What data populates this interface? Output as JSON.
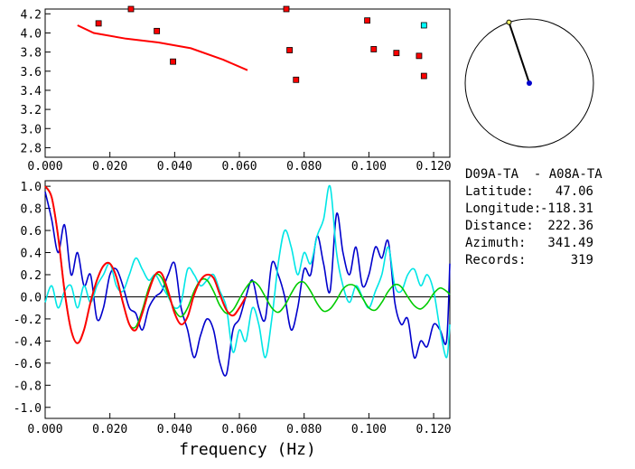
{
  "chart_data": [
    {
      "type": "scatter",
      "title": "",
      "xlabel": "",
      "ylabel": "",
      "xlim": [
        0.0,
        0.125
      ],
      "ylim": [
        2.7,
        4.25
      ],
      "xticks": [
        "0.000",
        "0.020",
        "0.040",
        "0.060",
        "0.080",
        "0.100",
        "0.120"
      ],
      "yticks": [
        "2.8",
        "3.0",
        "3.2",
        "3.4",
        "3.6",
        "3.8",
        "4.0",
        "4.2"
      ],
      "series": [
        {
          "name": "measurements",
          "color": "#ff0000",
          "points": [
            [
              0.0165,
              4.1
            ],
            [
              0.0265,
              4.25
            ],
            [
              0.0345,
              4.02
            ],
            [
              0.0395,
              3.7
            ],
            [
              0.0745,
              4.25
            ],
            [
              0.0755,
              3.82
            ],
            [
              0.0775,
              3.51
            ],
            [
              0.0995,
              4.13
            ],
            [
              0.1015,
              3.83
            ],
            [
              0.1085,
              3.79
            ],
            [
              0.1155,
              3.76
            ],
            [
              0.117,
              3.55
            ]
          ]
        },
        {
          "name": "highlighted",
          "color": "#00ffff",
          "points": [
            [
              0.117,
              4.08
            ]
          ]
        },
        {
          "name": "fit",
          "color": "#ff0000",
          "line": [
            [
              0.01,
              4.08
            ],
            [
              0.015,
              4.0
            ],
            [
              0.025,
              3.94
            ],
            [
              0.035,
              3.9
            ],
            [
              0.045,
              3.84
            ],
            [
              0.055,
              3.72
            ],
            [
              0.0625,
              3.61
            ]
          ]
        }
      ]
    },
    {
      "type": "line",
      "title": "",
      "xlabel": "frequency (Hz)",
      "ylabel": "",
      "xlim": [
        0.0,
        0.125
      ],
      "ylim": [
        -1.1,
        1.05
      ],
      "xticks": [
        "0.000",
        "0.020",
        "0.040",
        "0.060",
        "0.080",
        "0.100",
        "0.120"
      ],
      "yticks": [
        "1.0",
        "0.8",
        "0.6",
        "0.4",
        "0.2",
        "0.0",
        "-0.2",
        "-0.4",
        "-0.6",
        "-0.8",
        "-1.0"
      ],
      "series": [
        {
          "name": "blue",
          "color": "#0000cc",
          "x": [
            0.0,
            0.002,
            0.004,
            0.006,
            0.008,
            0.01,
            0.012,
            0.014,
            0.016,
            0.018,
            0.02,
            0.022,
            0.024,
            0.026,
            0.028,
            0.03,
            0.032,
            0.034,
            0.036,
            0.038,
            0.04,
            0.042,
            0.044,
            0.046,
            0.048,
            0.05,
            0.052,
            0.054,
            0.056,
            0.058,
            0.06,
            0.062,
            0.064,
            0.066,
            0.068,
            0.07,
            0.072,
            0.074,
            0.076,
            0.078,
            0.08,
            0.082,
            0.084,
            0.086,
            0.088,
            0.09,
            0.092,
            0.094,
            0.096,
            0.098,
            0.1,
            0.102,
            0.104,
            0.106,
            0.108,
            0.11,
            0.112,
            0.114,
            0.116,
            0.118,
            0.12,
            0.122,
            0.124,
            0.125
          ],
          "values": [
            0.95,
            0.7,
            0.4,
            0.65,
            0.2,
            0.4,
            0.1,
            0.2,
            -0.2,
            -0.1,
            0.2,
            0.25,
            0.1,
            -0.1,
            -0.15,
            -0.3,
            -0.1,
            0.0,
            0.05,
            0.2,
            0.3,
            -0.1,
            -0.3,
            -0.55,
            -0.35,
            -0.2,
            -0.3,
            -0.6,
            -0.7,
            -0.3,
            -0.2,
            0.0,
            0.15,
            -0.1,
            -0.2,
            0.3,
            0.2,
            0.0,
            -0.3,
            -0.1,
            0.25,
            0.2,
            0.55,
            0.3,
            0.05,
            0.75,
            0.4,
            0.2,
            0.45,
            0.1,
            0.2,
            0.45,
            0.35,
            0.5,
            -0.05,
            -0.25,
            -0.2,
            -0.55,
            -0.4,
            -0.45,
            -0.25,
            -0.3,
            -0.4,
            0.3
          ]
        },
        {
          "name": "cyan",
          "color": "#00e6e6",
          "x": [
            0.0,
            0.002,
            0.004,
            0.006,
            0.008,
            0.01,
            0.012,
            0.014,
            0.016,
            0.018,
            0.02,
            0.022,
            0.024,
            0.026,
            0.028,
            0.03,
            0.032,
            0.034,
            0.036,
            0.038,
            0.04,
            0.042,
            0.044,
            0.046,
            0.048,
            0.05,
            0.052,
            0.054,
            0.056,
            0.058,
            0.06,
            0.062,
            0.064,
            0.066,
            0.068,
            0.07,
            0.072,
            0.074,
            0.076,
            0.078,
            0.08,
            0.082,
            0.084,
            0.086,
            0.088,
            0.09,
            0.092,
            0.094,
            0.096,
            0.098,
            0.1,
            0.102,
            0.104,
            0.106,
            0.108,
            0.11,
            0.112,
            0.114,
            0.116,
            0.118,
            0.12,
            0.122,
            0.124,
            0.125
          ],
          "values": [
            -0.05,
            0.1,
            -0.1,
            0.05,
            0.1,
            -0.1,
            0.1,
            -0.05,
            0.1,
            0.2,
            0.3,
            0.1,
            0.05,
            0.2,
            0.35,
            0.25,
            0.15,
            0.2,
            0.1,
            0.0,
            -0.1,
            -0.05,
            0.25,
            0.2,
            0.1,
            0.15,
            0.2,
            0.05,
            -0.1,
            -0.5,
            -0.3,
            -0.4,
            -0.1,
            -0.25,
            -0.55,
            -0.2,
            0.3,
            0.6,
            0.45,
            0.2,
            0.4,
            0.3,
            0.55,
            0.7,
            1.0,
            0.4,
            0.1,
            -0.05,
            0.1,
            0.0,
            -0.1,
            0.05,
            0.2,
            0.45,
            0.1,
            0.05,
            0.2,
            0.25,
            0.1,
            0.2,
            0.05,
            -0.3,
            -0.55,
            -0.25
          ]
        },
        {
          "name": "green",
          "color": "#00cc00",
          "x": [
            0.0,
            0.002,
            0.004,
            0.006,
            0.008,
            0.01,
            0.012,
            0.014,
            0.016,
            0.018,
            0.02,
            0.022,
            0.024,
            0.026,
            0.028,
            0.03,
            0.032,
            0.034,
            0.036,
            0.038,
            0.04,
            0.042,
            0.044,
            0.046,
            0.048,
            0.05,
            0.052,
            0.054,
            0.056,
            0.058,
            0.06,
            0.062,
            0.064,
            0.066,
            0.068,
            0.07,
            0.072,
            0.074,
            0.076,
            0.078,
            0.08,
            0.082,
            0.084,
            0.086,
            0.088,
            0.09,
            0.092,
            0.094,
            0.096,
            0.098,
            0.1,
            0.102,
            0.104,
            0.106,
            0.108,
            0.11,
            0.112,
            0.114,
            0.116,
            0.118,
            0.12,
            0.122,
            0.124,
            0.125
          ],
          "values": [
            1.0,
            0.9,
            0.55,
            0.05,
            -0.3,
            -0.42,
            -0.3,
            -0.05,
            0.15,
            0.28,
            0.3,
            0.18,
            -0.05,
            -0.25,
            -0.27,
            -0.12,
            0.08,
            0.2,
            0.17,
            0.02,
            -0.12,
            -0.18,
            -0.1,
            0.05,
            0.15,
            0.15,
            0.05,
            -0.08,
            -0.15,
            -0.12,
            -0.02,
            0.08,
            0.14,
            0.1,
            0.0,
            -0.1,
            -0.14,
            -0.08,
            0.03,
            0.12,
            0.13,
            0.05,
            -0.06,
            -0.13,
            -0.11,
            -0.03,
            0.07,
            0.11,
            0.09,
            -0.01,
            -0.1,
            -0.12,
            -0.05,
            0.05,
            0.11,
            0.09,
            0.0,
            -0.08,
            -0.11,
            -0.06,
            0.03,
            0.08,
            0.05,
            0.02
          ]
        },
        {
          "name": "red",
          "color": "#ff0000",
          "x": [
            0.0,
            0.002,
            0.004,
            0.006,
            0.008,
            0.01,
            0.012,
            0.014,
            0.016,
            0.018,
            0.02,
            0.022,
            0.024,
            0.026,
            0.028,
            0.03,
            0.032,
            0.034,
            0.036,
            0.038,
            0.04,
            0.042,
            0.044,
            0.046,
            0.048,
            0.05,
            0.052,
            0.054,
            0.056,
            0.058,
            0.06,
            0.062
          ],
          "values": [
            1.0,
            0.9,
            0.55,
            0.05,
            -0.3,
            -0.42,
            -0.3,
            -0.05,
            0.15,
            0.28,
            0.3,
            0.18,
            -0.05,
            -0.25,
            -0.3,
            -0.15,
            0.05,
            0.2,
            0.21,
            0.05,
            -0.15,
            -0.25,
            -0.18,
            0.02,
            0.15,
            0.2,
            0.17,
            0.02,
            -0.12,
            -0.17,
            -0.1,
            0.0
          ]
        }
      ],
      "reference_line": {
        "y": 0.0,
        "color": "#000000"
      }
    },
    {
      "type": "polar",
      "title": "",
      "azimuth_deg": 341.49,
      "marker_center_color": "#0000cc",
      "marker_end_color": "#ffff66"
    }
  ],
  "info": {
    "title": "D09A-TA  - A08A-TA",
    "rows": [
      {
        "label": "Latitude:",
        "value": "47.06"
      },
      {
        "label": "Longitude:",
        "value": "-118.31"
      },
      {
        "label": "Distance:",
        "value": "222.36"
      },
      {
        "label": "Azimuth:",
        "value": "341.49"
      },
      {
        "label": "Records:",
        "value": "319"
      }
    ]
  }
}
